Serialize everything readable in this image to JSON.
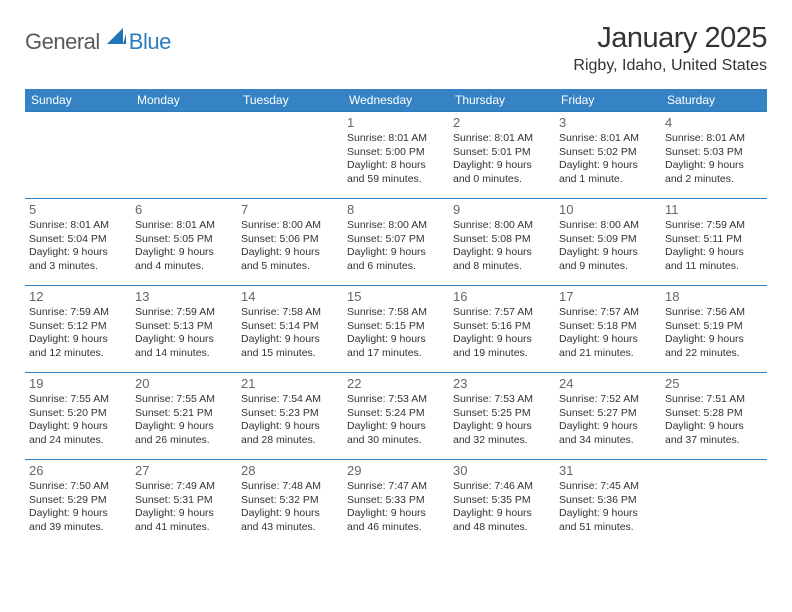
{
  "logo": {
    "text1": "General",
    "text2": "Blue"
  },
  "title": "January 2025",
  "location": "Rigby, Idaho, United States",
  "colors": {
    "header_bg": "#3583c4",
    "header_text": "#ffffff",
    "row_border": "#2b7dbf",
    "daynum": "#666666",
    "body_text": "#333333",
    "logo_gray": "#5a5a5a",
    "logo_blue": "#2b7dbf",
    "sail_blue": "#2274b8"
  },
  "day_names": [
    "Sunday",
    "Monday",
    "Tuesday",
    "Wednesday",
    "Thursday",
    "Friday",
    "Saturday"
  ],
  "weeks": [
    [
      null,
      null,
      null,
      {
        "n": "1",
        "sr": "8:01 AM",
        "ss": "5:00 PM",
        "dl": "8 hours and 59 minutes."
      },
      {
        "n": "2",
        "sr": "8:01 AM",
        "ss": "5:01 PM",
        "dl": "9 hours and 0 minutes."
      },
      {
        "n": "3",
        "sr": "8:01 AM",
        "ss": "5:02 PM",
        "dl": "9 hours and 1 minute."
      },
      {
        "n": "4",
        "sr": "8:01 AM",
        "ss": "5:03 PM",
        "dl": "9 hours and 2 minutes."
      }
    ],
    [
      {
        "n": "5",
        "sr": "8:01 AM",
        "ss": "5:04 PM",
        "dl": "9 hours and 3 minutes."
      },
      {
        "n": "6",
        "sr": "8:01 AM",
        "ss": "5:05 PM",
        "dl": "9 hours and 4 minutes."
      },
      {
        "n": "7",
        "sr": "8:00 AM",
        "ss": "5:06 PM",
        "dl": "9 hours and 5 minutes."
      },
      {
        "n": "8",
        "sr": "8:00 AM",
        "ss": "5:07 PM",
        "dl": "9 hours and 6 minutes."
      },
      {
        "n": "9",
        "sr": "8:00 AM",
        "ss": "5:08 PM",
        "dl": "9 hours and 8 minutes."
      },
      {
        "n": "10",
        "sr": "8:00 AM",
        "ss": "5:09 PM",
        "dl": "9 hours and 9 minutes."
      },
      {
        "n": "11",
        "sr": "7:59 AM",
        "ss": "5:11 PM",
        "dl": "9 hours and 11 minutes."
      }
    ],
    [
      {
        "n": "12",
        "sr": "7:59 AM",
        "ss": "5:12 PM",
        "dl": "9 hours and 12 minutes."
      },
      {
        "n": "13",
        "sr": "7:59 AM",
        "ss": "5:13 PM",
        "dl": "9 hours and 14 minutes."
      },
      {
        "n": "14",
        "sr": "7:58 AM",
        "ss": "5:14 PM",
        "dl": "9 hours and 15 minutes."
      },
      {
        "n": "15",
        "sr": "7:58 AM",
        "ss": "5:15 PM",
        "dl": "9 hours and 17 minutes."
      },
      {
        "n": "16",
        "sr": "7:57 AM",
        "ss": "5:16 PM",
        "dl": "9 hours and 19 minutes."
      },
      {
        "n": "17",
        "sr": "7:57 AM",
        "ss": "5:18 PM",
        "dl": "9 hours and 21 minutes."
      },
      {
        "n": "18",
        "sr": "7:56 AM",
        "ss": "5:19 PM",
        "dl": "9 hours and 22 minutes."
      }
    ],
    [
      {
        "n": "19",
        "sr": "7:55 AM",
        "ss": "5:20 PM",
        "dl": "9 hours and 24 minutes."
      },
      {
        "n": "20",
        "sr": "7:55 AM",
        "ss": "5:21 PM",
        "dl": "9 hours and 26 minutes."
      },
      {
        "n": "21",
        "sr": "7:54 AM",
        "ss": "5:23 PM",
        "dl": "9 hours and 28 minutes."
      },
      {
        "n": "22",
        "sr": "7:53 AM",
        "ss": "5:24 PM",
        "dl": "9 hours and 30 minutes."
      },
      {
        "n": "23",
        "sr": "7:53 AM",
        "ss": "5:25 PM",
        "dl": "9 hours and 32 minutes."
      },
      {
        "n": "24",
        "sr": "7:52 AM",
        "ss": "5:27 PM",
        "dl": "9 hours and 34 minutes."
      },
      {
        "n": "25",
        "sr": "7:51 AM",
        "ss": "5:28 PM",
        "dl": "9 hours and 37 minutes."
      }
    ],
    [
      {
        "n": "26",
        "sr": "7:50 AM",
        "ss": "5:29 PM",
        "dl": "9 hours and 39 minutes."
      },
      {
        "n": "27",
        "sr": "7:49 AM",
        "ss": "5:31 PM",
        "dl": "9 hours and 41 minutes."
      },
      {
        "n": "28",
        "sr": "7:48 AM",
        "ss": "5:32 PM",
        "dl": "9 hours and 43 minutes."
      },
      {
        "n": "29",
        "sr": "7:47 AM",
        "ss": "5:33 PM",
        "dl": "9 hours and 46 minutes."
      },
      {
        "n": "30",
        "sr": "7:46 AM",
        "ss": "5:35 PM",
        "dl": "9 hours and 48 minutes."
      },
      {
        "n": "31",
        "sr": "7:45 AM",
        "ss": "5:36 PM",
        "dl": "9 hours and 51 minutes."
      },
      null
    ]
  ],
  "labels": {
    "sunrise": "Sunrise:",
    "sunset": "Sunset:",
    "daylight": "Daylight:"
  }
}
